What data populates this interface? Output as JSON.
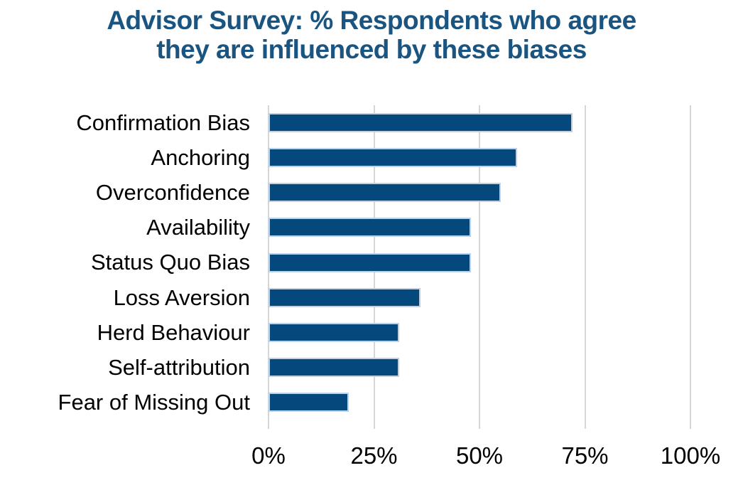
{
  "header": {
    "title_line1": "Advisor Survey: % Respondents who agree",
    "title_line2": "they are influenced by these biases"
  },
  "chart_data": {
    "type": "bar",
    "orientation": "horizontal",
    "title": "Advisor Survey: % Respondents who agree they are influenced by these biases",
    "categories": [
      "Confirmation Bias",
      "Anchoring",
      "Overconfidence",
      "Availability",
      "Status Quo Bias",
      "Loss Aversion",
      "Herd Behaviour",
      "Self-attribution",
      "Fear of Missing Out"
    ],
    "values": [
      72,
      59,
      55,
      48,
      48,
      36,
      31,
      31,
      19
    ],
    "xlabel": "",
    "ylabel": "",
    "xlim": [
      0,
      100
    ],
    "x_ticks": [
      "0%",
      "25%",
      "50%",
      "75%",
      "100%"
    ],
    "x_tick_values": [
      0,
      25,
      50,
      75,
      100
    ],
    "grid": true,
    "legend": false,
    "colors": {
      "bar_fill": "#04487C",
      "bar_border": "#BDD0E4",
      "gridline": "#D6D6D6",
      "title_text": "#1A5480",
      "axis_text": "#000000"
    }
  }
}
